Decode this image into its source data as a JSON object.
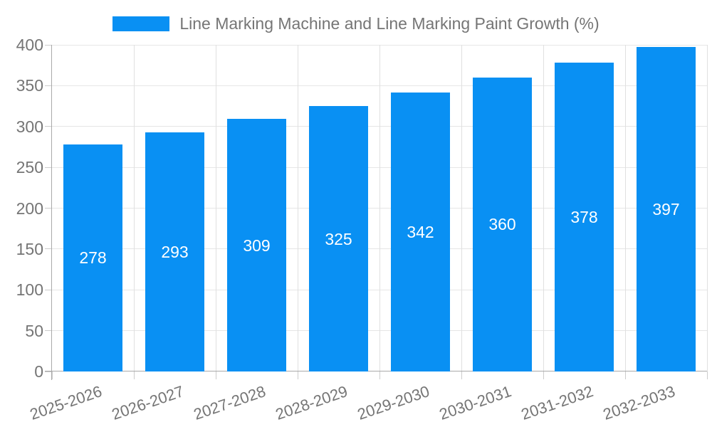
{
  "chart_data": {
    "type": "bar",
    "title": "Line Marking Machine and Line Marking Paint Growth (%)",
    "categories": [
      "2025-2026",
      "2026-2027",
      "2027-2028",
      "2028-2029",
      "2029-2030",
      "2030-2031",
      "2031-2032",
      "2032-2033"
    ],
    "values": [
      278,
      293,
      309,
      325,
      342,
      360,
      378,
      397
    ],
    "value_labels": [
      "278",
      "293",
      "309",
      "325",
      "342",
      "360",
      "378",
      "397"
    ],
    "xlabel": "",
    "ylabel": "",
    "ylim": [
      0,
      400
    ],
    "yticks": [
      0,
      50,
      100,
      150,
      200,
      250,
      300,
      350,
      400
    ],
    "grid": true,
    "legend_position": "top",
    "colors": {
      "bar": "#0990f3",
      "value_label": "#ffffff",
      "gridline_h": "#e6e6e6",
      "gridline_v": "#e0e0e0",
      "tick": "#cccccc",
      "axis": "#a9a9a9",
      "text": "#757575",
      "background": "#ffffff"
    }
  }
}
